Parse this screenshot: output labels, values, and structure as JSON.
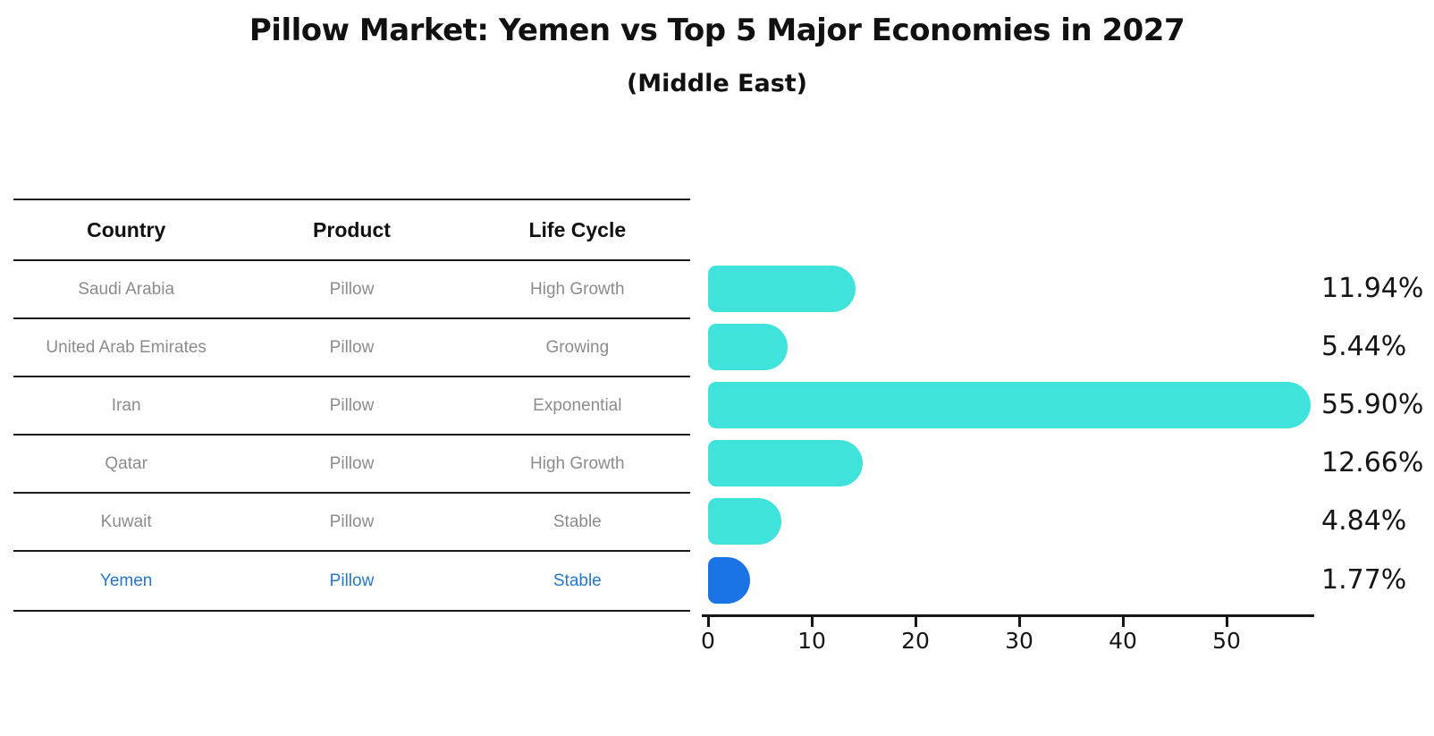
{
  "title": "Pillow Market: Yemen vs Top 5 Major Economies in 2027",
  "subtitle": "(Middle East)",
  "table": {
    "headers": [
      "Country",
      "Product",
      "Life Cycle"
    ],
    "rows": [
      {
        "country": "Saudi Arabia",
        "product": "Pillow",
        "life_cycle": "High Growth",
        "highlighted": false
      },
      {
        "country": "United Arab Emirates",
        "product": "Pillow",
        "life_cycle": "Growing",
        "highlighted": false
      },
      {
        "country": "Iran",
        "product": "Pillow",
        "life_cycle": "Exponential",
        "highlighted": false
      },
      {
        "country": "Qatar",
        "product": "Pillow",
        "life_cycle": "High Growth",
        "highlighted": false
      },
      {
        "country": "Kuwait",
        "product": "Pillow",
        "life_cycle": "Stable",
        "highlighted": false
      },
      {
        "country": "Yemen",
        "product": "Pillow",
        "life_cycle": "Stable",
        "highlighted": true
      }
    ]
  },
  "chart_data": {
    "type": "bar",
    "orientation": "horizontal",
    "title": "Pillow Market: Yemen vs Top 5 Major Economies in 2027",
    "subtitle": "(Middle East)",
    "categories": [
      "Saudi Arabia",
      "United Arab Emirates",
      "Iran",
      "Qatar",
      "Kuwait",
      "Yemen"
    ],
    "values": [
      11.94,
      5.44,
      55.9,
      12.66,
      4.84,
      1.77
    ],
    "value_labels": [
      "11.94%",
      "5.44%",
      "55.90%",
      "12.66%",
      "4.84%",
      "1.77%"
    ],
    "unit": "%",
    "xticks": [
      0,
      10,
      20,
      30,
      40,
      50
    ],
    "xlim": [
      0,
      58.5
    ],
    "grid": false,
    "legend": "none",
    "bar_color": "#40e3db",
    "highlight_color": "#1b74e4",
    "highlight_index": 5,
    "highlight_text_color": "#2778c9"
  }
}
